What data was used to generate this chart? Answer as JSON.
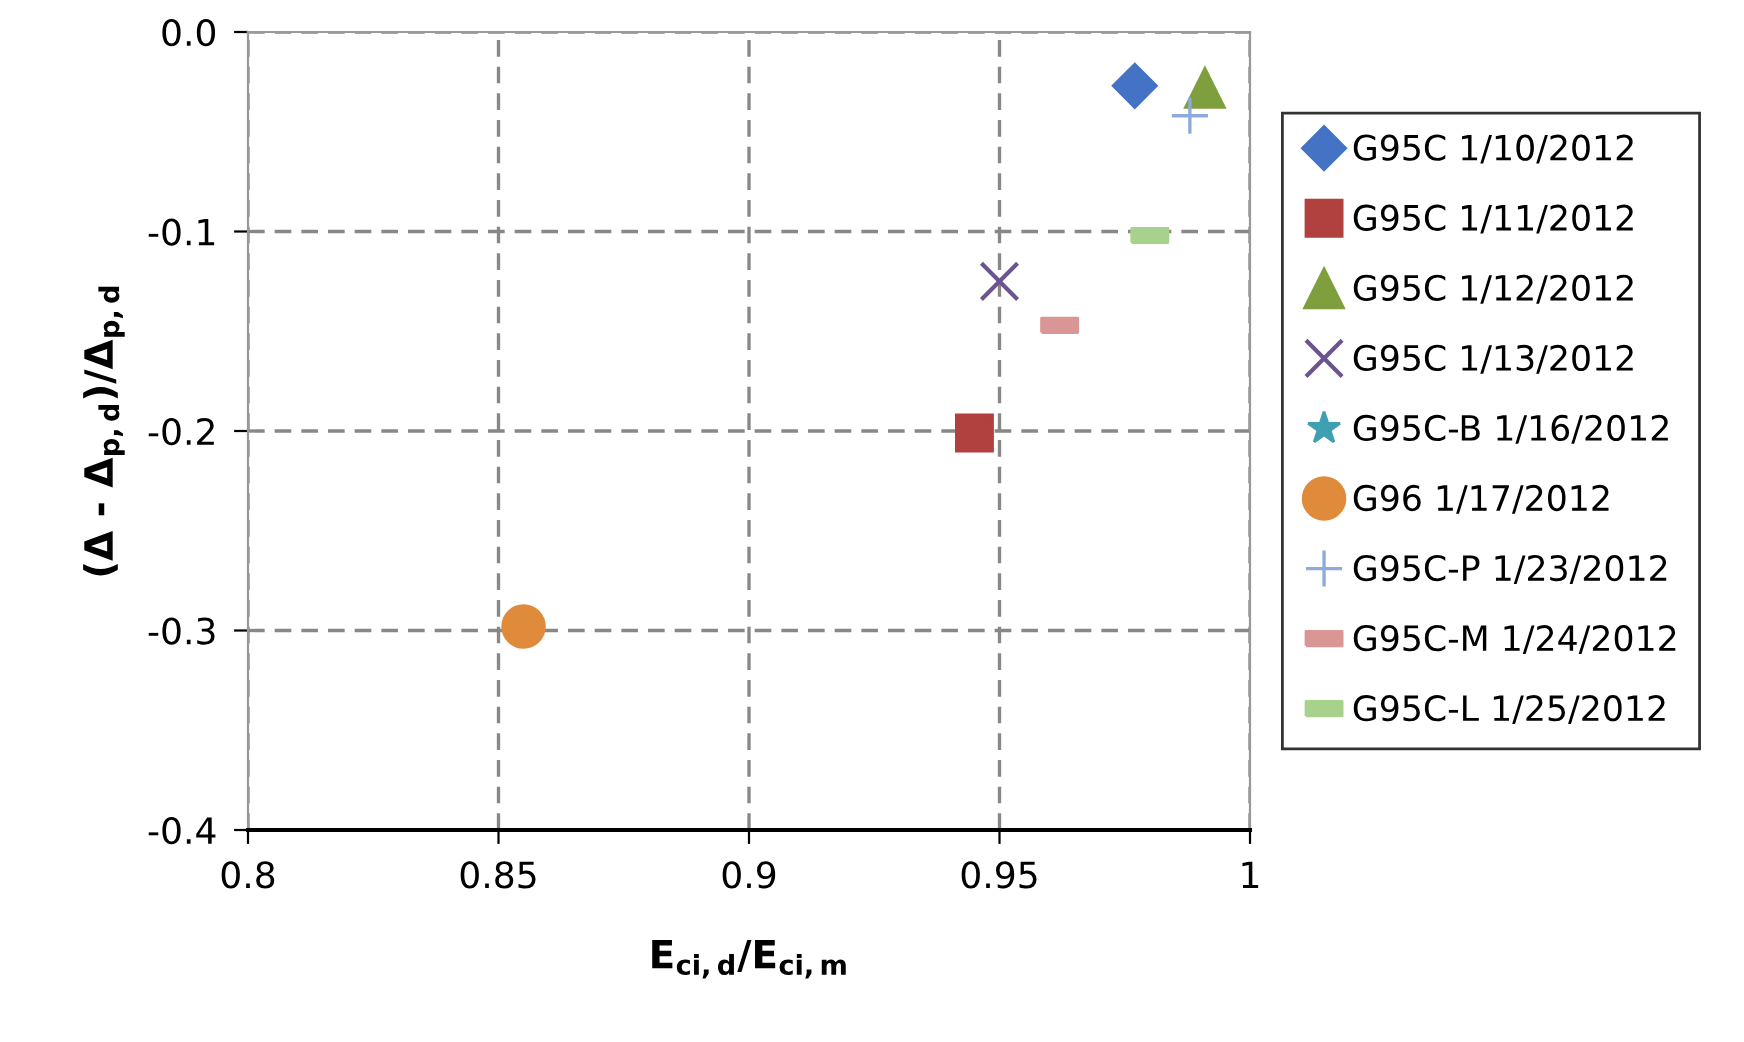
{
  "chart_data": {
    "type": "scatter",
    "xlabel": "E$_{ci,d}$/E$_{ci,m}$",
    "ylabel": "(Δ - Δ$_{p,d}$)/Δ$_{p,d}$",
    "xlim": [
      0.8,
      1
    ],
    "xticks": [
      0.8,
      0.85,
      0.9,
      0.95,
      1
    ],
    "ylim": [
      -0.4,
      0.0
    ],
    "yticks": [
      {
        "value": -0.4,
        "label": "-0.4"
      },
      {
        "value": -0.3,
        "label": "-0.3"
      },
      {
        "value": -0.2,
        "label": "-0.2"
      },
      {
        "value": -0.1,
        "label": "-0.1"
      },
      {
        "value": 0.0,
        "label": "0.0"
      }
    ],
    "grid": true,
    "legend": "right",
    "line_style": "dashed",
    "series": [
      {
        "name": "G95C 1/10/2012",
        "color": "#4472c4",
        "marker": "diamond",
        "x": [
          0.977
        ],
        "values": [
          -0.027
        ]
      },
      {
        "name": "G95C 1/11/2012",
        "color": "#b0413e",
        "marker": "square",
        "x": [
          0.945
        ],
        "values": [
          -0.201
        ]
      },
      {
        "name": "G95C 1/12/2012",
        "color": "#7f9f3e",
        "marker": "triangle",
        "x": [
          0.991
        ],
        "values": [
          -0.028
        ]
      },
      {
        "name": "G95C 1/13/2012",
        "color": "#6a5590",
        "marker": "cross",
        "x": [
          0.95
        ],
        "values": [
          -0.125
        ]
      },
      {
        "name": "G95C-B 1/16/2012",
        "color": "#3ea0b0",
        "marker": "star",
        "x": [
          null
        ],
        "values": [
          null
        ]
      },
      {
        "name": "G96 1/17/2012",
        "color": "#e08a3c",
        "marker": "circle",
        "x": [
          0.855
        ],
        "values": [
          -0.298
        ]
      },
      {
        "name": "G95C-P 1/23/2012",
        "color": "#8eaadb",
        "marker": "plus",
        "x": [
          0.988
        ],
        "values": [
          -0.042
        ]
      },
      {
        "name": "G95C-M 1/24/2012",
        "color": "#d99694",
        "x": [
          0.962
        ],
        "values": [
          -0.147
        ]
      },
      {
        "name": "G95C-L 1/25/2012",
        "color": "#a9d18e",
        "x": [
          0.98
        ],
        "values": [
          -0.102
        ]
      }
    ]
  }
}
